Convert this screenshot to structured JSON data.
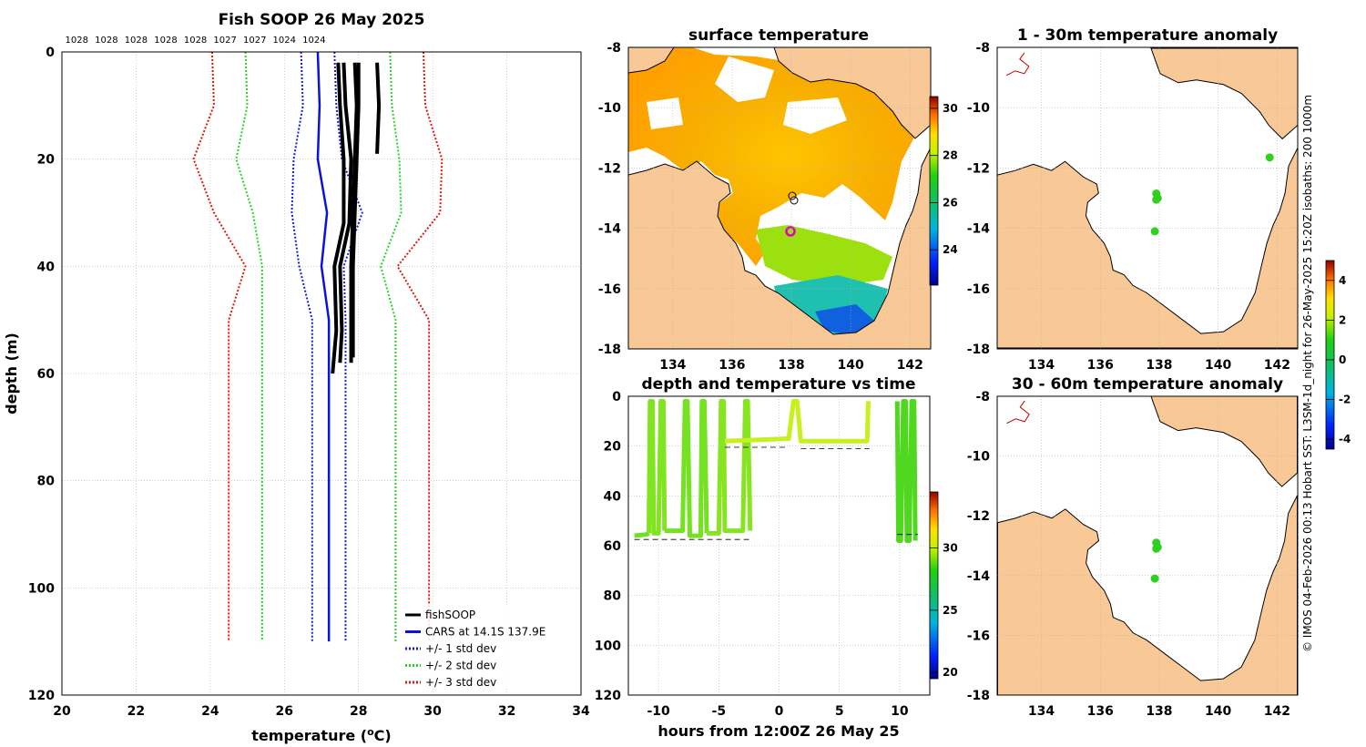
{
  "colors": {
    "black": "#000000",
    "cars": "#0a14d8",
    "std1": "#1a1adf",
    "std2": "#26d626",
    "std3": "#e01a0a",
    "land": "#f8c896",
    "grid": "#b3b3b3"
  },
  "chart_data": [
    {
      "id": "profile",
      "type": "line",
      "title": "Fish SOOP 26 May 2025",
      "xlabel": "temperature (",
      "xlabel_sup": "o",
      "xlabel_end": "C)",
      "ylabel": "depth (m)",
      "xlim": [
        20,
        34
      ],
      "ylim": [
        0,
        120
      ],
      "xticks": [
        "20",
        "22",
        "24",
        "26",
        "28",
        "30",
        "32",
        "34"
      ],
      "yticks": [
        "0",
        "20",
        "40",
        "60",
        "80",
        "100",
        "120"
      ],
      "density_labels": [
        "1028",
        "1028",
        "1028",
        "1028",
        "1028",
        "1027",
        "1027",
        "1024",
        "1024"
      ],
      "density_temps": [
        20.4,
        21.2,
        22.0,
        22.8,
        23.6,
        24.4,
        25.2,
        26.0,
        26.8
      ],
      "legend": [
        {
          "label": "fishSOOP",
          "style": "solid",
          "color": "#000000"
        },
        {
          "label": "CARS at 14.1S 137.9E",
          "style": "solid",
          "color": "#0a14d8"
        },
        {
          "label": "+/- 1 std dev",
          "style": "dotted",
          "color": "#1a1adf"
        },
        {
          "label": "+/- 2 std dev",
          "style": "dotted",
          "color": "#26d626"
        },
        {
          "label": "+/- 3 std dev",
          "style": "dotted",
          "color": "#e01a0a"
        }
      ],
      "depths": [
        0,
        10,
        20,
        30,
        40,
        50,
        60,
        70,
        80,
        90,
        100,
        110
      ],
      "cars": [
        26.9,
        26.95,
        26.9,
        27.15,
        27.0,
        27.2,
        27.2,
        27.2,
        27.2,
        27.2,
        27.2,
        27.2
      ],
      "std1": [
        0.45,
        0.45,
        0.65,
        0.95,
        0.6,
        0.45,
        0.45,
        0.45,
        0.45,
        0.45,
        0.45,
        0.45
      ],
      "std2": [
        1.95,
        1.95,
        2.2,
        2.0,
        1.6,
        1.8,
        1.8,
        1.8,
        1.8,
        1.8,
        1.8,
        1.8
      ],
      "std3": [
        2.85,
        2.85,
        3.35,
        3.05,
        2.05,
        2.7,
        2.7,
        2.7,
        2.7,
        2.7,
        2.7,
        2.7
      ],
      "fish_casts": [
        {
          "temps": [
            27.45,
            27.5,
            27.6,
            27.6,
            27.35,
            27.4,
            27.3
          ],
          "depths": [
            2,
            10,
            20,
            32,
            40,
            52,
            60
          ]
        },
        {
          "temps": [
            27.6,
            27.65,
            27.8,
            27.75,
            27.5,
            27.55,
            27.5
          ],
          "depths": [
            2,
            10,
            20,
            32,
            40,
            52,
            58
          ]
        },
        {
          "temps": [
            27.9,
            27.95,
            27.9,
            27.85,
            27.8,
            27.8,
            27.8
          ],
          "depths": [
            2,
            10,
            20,
            30,
            40,
            52,
            58
          ]
        },
        {
          "temps": [
            28.0,
            28.0,
            27.95,
            27.9,
            27.85,
            27.85,
            27.85
          ],
          "depths": [
            2,
            10,
            20,
            30,
            40,
            52,
            57
          ]
        },
        {
          "temps": [
            28.5,
            28.55,
            28.5
          ],
          "depths": [
            2,
            10,
            19
          ]
        }
      ]
    },
    {
      "id": "sst",
      "type": "heatmap",
      "title": "surface temperature",
      "xlim": [
        132.5,
        142.7
      ],
      "ylim": [
        -18,
        -8
      ],
      "xticks": [
        "134",
        "136",
        "138",
        "140",
        "142"
      ],
      "yticks": [
        "-8",
        "-10",
        "-12",
        "-14",
        "-16",
        "-18"
      ],
      "cbar_ticks": [
        "30",
        "28",
        "26",
        "24"
      ],
      "cbar_range": [
        22.5,
        30.5
      ]
    },
    {
      "id": "anom1",
      "type": "scatter",
      "title": "1 - 30m temperature anomaly",
      "xlim": [
        132.5,
        142.7
      ],
      "ylim": [
        -18,
        -8
      ],
      "xticks": [
        "134",
        "136",
        "138",
        "140",
        "142"
      ],
      "yticks": [
        "-8",
        "-10",
        "-12",
        "-14",
        "-16",
        "-18"
      ],
      "points": [
        [
          137.9,
          -12.85
        ],
        [
          137.95,
          -13.0
        ],
        [
          137.9,
          -13.05
        ],
        [
          137.85,
          -14.1
        ],
        [
          141.75,
          -11.65
        ]
      ],
      "cbar_ticks": [
        "4",
        "2",
        "0",
        "-2",
        "-4"
      ],
      "cbar_range": [
        -4.5,
        5
      ]
    },
    {
      "id": "depthtime",
      "type": "scatter",
      "title": "depth and temperature vs time",
      "xlabel": "hours from 12:00Z 26 May 25",
      "xlim": [
        -12.5,
        12.5
      ],
      "ylim": [
        0,
        120
      ],
      "xticks": [
        "-10",
        "-5",
        "0",
        "5",
        "10"
      ],
      "yticks": [
        "0",
        "20",
        "40",
        "60",
        "80",
        "100",
        "120"
      ],
      "cbar_ticks": [
        "30",
        "25",
        "20"
      ],
      "cbar_range": [
        19.5,
        34.5
      ]
    },
    {
      "id": "anom2",
      "type": "scatter",
      "title": "30 - 60m temperature anomaly",
      "xlim": [
        132.5,
        142.7
      ],
      "ylim": [
        -18,
        -8
      ],
      "xticks": [
        "134",
        "136",
        "138",
        "140",
        "142"
      ],
      "yticks": [
        "-8",
        "-10",
        "-12",
        "-14",
        "-16",
        "-18"
      ],
      "points": [
        [
          137.9,
          -12.9
        ],
        [
          137.95,
          -13.05
        ],
        [
          137.9,
          -13.1
        ],
        [
          137.85,
          -14.1
        ]
      ]
    }
  ],
  "side_note": "© IMOS 04-Feb-2026 00:13 Hobart SST: L3SM-1d_night for 26-May-2025 15:20Z isobaths: 200  1000m"
}
